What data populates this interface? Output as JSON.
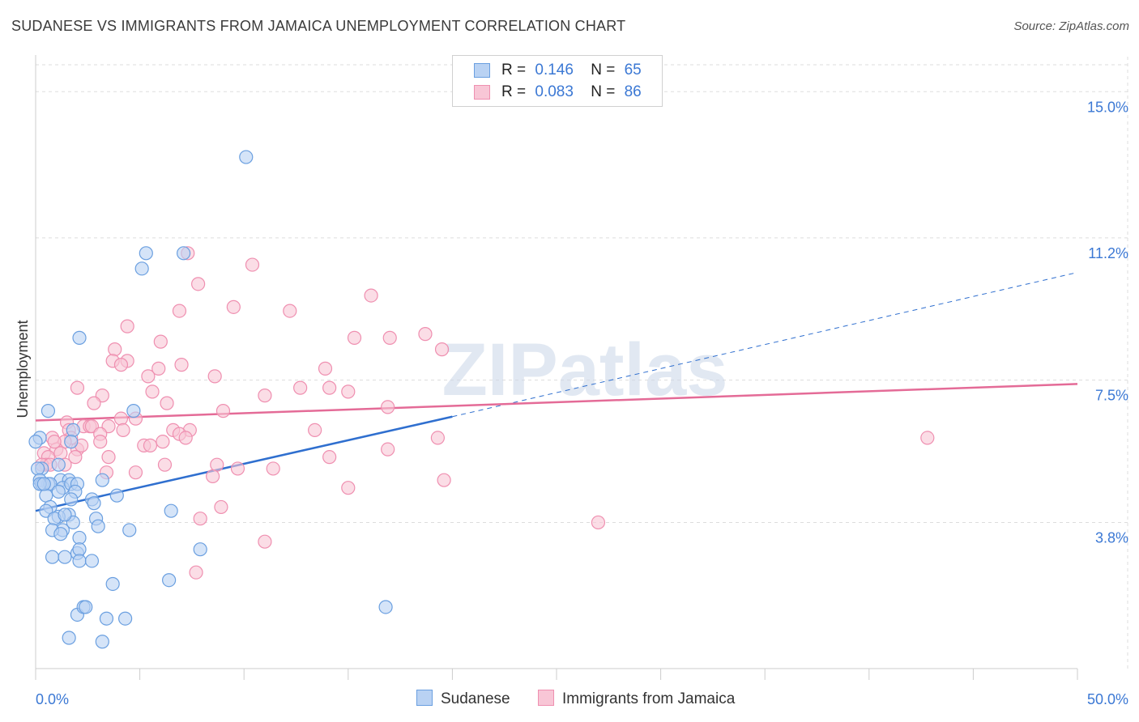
{
  "title": "SUDANESE VS IMMIGRANTS FROM JAMAICA UNEMPLOYMENT CORRELATION CHART",
  "source": "Source: ZipAtlas.com",
  "watermark": "ZIPatlas",
  "legend": {
    "rows": [
      {
        "r_label": "R =",
        "r_value": "0.146",
        "n_label": "N =",
        "n_value": "65"
      },
      {
        "r_label": "R =",
        "r_value": "0.083",
        "n_label": "N =",
        "n_value": "86"
      }
    ]
  },
  "bottom_legend": [
    "Sudanese",
    "Immigrants from Jamaica"
  ],
  "colors": {
    "blue": "#6a9fe0",
    "blue_line": "#2f6fcf",
    "pink": "#ef8fb0",
    "pink_line": "#e46b97",
    "axis_text": "#3b78d4"
  },
  "chart_data": {
    "type": "scatter",
    "title": "SUDANESE VS IMMIGRANTS FROM JAMAICA UNEMPLOYMENT CORRELATION CHART",
    "xlabel": "",
    "ylabel": "Unemployment",
    "xlim": [
      0,
      50
    ],
    "ylim": [
      0,
      15.7
    ],
    "x_tick_labels": [
      "0.0%",
      "50.0%"
    ],
    "y_ticks": [
      3.8,
      7.5,
      11.2,
      15.0
    ],
    "y_tick_labels": [
      "3.8%",
      "7.5%",
      "11.2%",
      "15.0%"
    ],
    "grid": true,
    "series": [
      {
        "name": "Sudanese",
        "R": 0.146,
        "N": 65,
        "trend": {
          "x": [
            0,
            20
          ],
          "y": [
            4.1,
            6.55
          ]
        },
        "trend_extension": {
          "x": [
            20,
            50
          ],
          "y": [
            6.55,
            10.3
          ]
        },
        "points": [
          [
            10.1,
            13.3
          ],
          [
            5.3,
            10.8
          ],
          [
            7.1,
            10.8
          ],
          [
            5.1,
            10.4
          ],
          [
            2.1,
            8.6
          ],
          [
            4.7,
            6.7
          ],
          [
            0.6,
            6.7
          ],
          [
            1.8,
            6.2
          ],
          [
            0.2,
            6.0
          ],
          [
            1.7,
            5.9
          ],
          [
            1.1,
            5.3
          ],
          [
            0.3,
            5.2
          ],
          [
            0.1,
            5.2
          ],
          [
            0.2,
            4.9
          ],
          [
            0.6,
            4.8
          ],
          [
            0.3,
            4.8
          ],
          [
            1.2,
            4.9
          ],
          [
            1.6,
            4.9
          ],
          [
            0.7,
            4.8
          ],
          [
            1.3,
            4.7
          ],
          [
            1.7,
            4.8
          ],
          [
            2.0,
            4.8
          ],
          [
            1.1,
            4.6
          ],
          [
            1.9,
            4.6
          ],
          [
            0.5,
            4.5
          ],
          [
            3.2,
            4.9
          ],
          [
            3.9,
            4.5
          ],
          [
            1.7,
            4.4
          ],
          [
            2.7,
            4.4
          ],
          [
            2.8,
            4.3
          ],
          [
            0.7,
            4.2
          ],
          [
            0.5,
            4.1
          ],
          [
            1.6,
            4.0
          ],
          [
            1.1,
            3.95
          ],
          [
            0.9,
            3.9
          ],
          [
            2.9,
            3.9
          ],
          [
            1.8,
            3.8
          ],
          [
            3.0,
            3.7
          ],
          [
            1.3,
            3.6
          ],
          [
            4.5,
            3.6
          ],
          [
            0.8,
            3.6
          ],
          [
            1.2,
            3.5
          ],
          [
            2.1,
            3.4
          ],
          [
            6.5,
            4.1
          ],
          [
            0.8,
            2.9
          ],
          [
            1.4,
            2.9
          ],
          [
            2.0,
            3.0
          ],
          [
            2.1,
            3.1
          ],
          [
            7.9,
            3.1
          ],
          [
            2.1,
            2.8
          ],
          [
            2.7,
            2.8
          ],
          [
            6.4,
            2.3
          ],
          [
            3.7,
            2.2
          ],
          [
            2.0,
            1.4
          ],
          [
            2.3,
            1.6
          ],
          [
            2.4,
            1.6
          ],
          [
            3.4,
            1.3
          ],
          [
            4.3,
            1.3
          ],
          [
            1.6,
            0.8
          ],
          [
            3.2,
            0.7
          ],
          [
            16.8,
            1.6
          ],
          [
            0.0,
            5.9
          ],
          [
            0.2,
            4.8
          ],
          [
            1.4,
            4.0
          ],
          [
            0.4,
            4.8
          ]
        ]
      },
      {
        "name": "Immigrants from Jamaica",
        "R": 0.083,
        "N": 86,
        "trend": {
          "x": [
            0,
            50
          ],
          "y": [
            6.45,
            7.4
          ]
        },
        "points": [
          [
            7.3,
            10.8
          ],
          [
            10.4,
            10.5
          ],
          [
            7.8,
            10.0
          ],
          [
            16.1,
            9.7
          ],
          [
            9.5,
            9.4
          ],
          [
            12.2,
            9.3
          ],
          [
            6.9,
            9.3
          ],
          [
            4.4,
            8.9
          ],
          [
            15.3,
            8.6
          ],
          [
            17.0,
            8.6
          ],
          [
            18.7,
            8.7
          ],
          [
            6.0,
            8.5
          ],
          [
            3.8,
            8.3
          ],
          [
            19.5,
            8.3
          ],
          [
            3.7,
            8.0
          ],
          [
            4.4,
            8.0
          ],
          [
            4.1,
            7.9
          ],
          [
            7.0,
            7.9
          ],
          [
            5.9,
            7.8
          ],
          [
            13.9,
            7.8
          ],
          [
            8.6,
            7.6
          ],
          [
            5.4,
            7.6
          ],
          [
            14.1,
            7.3
          ],
          [
            2.0,
            7.3
          ],
          [
            12.7,
            7.3
          ],
          [
            11.0,
            7.1
          ],
          [
            5.6,
            7.2
          ],
          [
            3.2,
            7.1
          ],
          [
            15.0,
            7.2
          ],
          [
            6.3,
            6.9
          ],
          [
            2.8,
            6.9
          ],
          [
            16.9,
            6.8
          ],
          [
            9.0,
            6.7
          ],
          [
            4.1,
            6.5
          ],
          [
            4.8,
            6.5
          ],
          [
            1.5,
            6.4
          ],
          [
            2.3,
            6.3
          ],
          [
            2.6,
            6.3
          ],
          [
            3.5,
            6.3
          ],
          [
            2.7,
            6.3
          ],
          [
            1.6,
            6.2
          ],
          [
            4.2,
            6.2
          ],
          [
            6.6,
            6.2
          ],
          [
            7.4,
            6.2
          ],
          [
            13.4,
            6.2
          ],
          [
            3.1,
            6.1
          ],
          [
            6.9,
            6.1
          ],
          [
            7.2,
            6.0
          ],
          [
            1.7,
            6.0
          ],
          [
            0.8,
            6.0
          ],
          [
            1.4,
            5.9
          ],
          [
            19.3,
            6.0
          ],
          [
            42.8,
            6.0
          ],
          [
            3.1,
            5.9
          ],
          [
            6.1,
            5.9
          ],
          [
            5.2,
            5.8
          ],
          [
            5.5,
            5.8
          ],
          [
            1.0,
            5.7
          ],
          [
            2.0,
            5.7
          ],
          [
            1.2,
            5.6
          ],
          [
            16.9,
            5.7
          ],
          [
            0.4,
            5.6
          ],
          [
            0.6,
            5.5
          ],
          [
            3.5,
            5.5
          ],
          [
            14.1,
            5.5
          ],
          [
            0.5,
            5.3
          ],
          [
            0.3,
            5.3
          ],
          [
            1.4,
            5.3
          ],
          [
            6.2,
            5.3
          ],
          [
            8.7,
            5.3
          ],
          [
            11.4,
            5.2
          ],
          [
            9.7,
            5.2
          ],
          [
            3.4,
            5.1
          ],
          [
            4.8,
            5.1
          ],
          [
            8.5,
            5.0
          ],
          [
            19.6,
            4.9
          ],
          [
            15.0,
            4.7
          ],
          [
            8.9,
            4.2
          ],
          [
            7.9,
            3.9
          ],
          [
            27.0,
            3.8
          ],
          [
            11.0,
            3.3
          ],
          [
            7.7,
            2.5
          ],
          [
            0.7,
            5.3
          ],
          [
            0.9,
            5.9
          ],
          [
            2.2,
            5.8
          ],
          [
            1.9,
            5.5
          ]
        ]
      }
    ]
  }
}
